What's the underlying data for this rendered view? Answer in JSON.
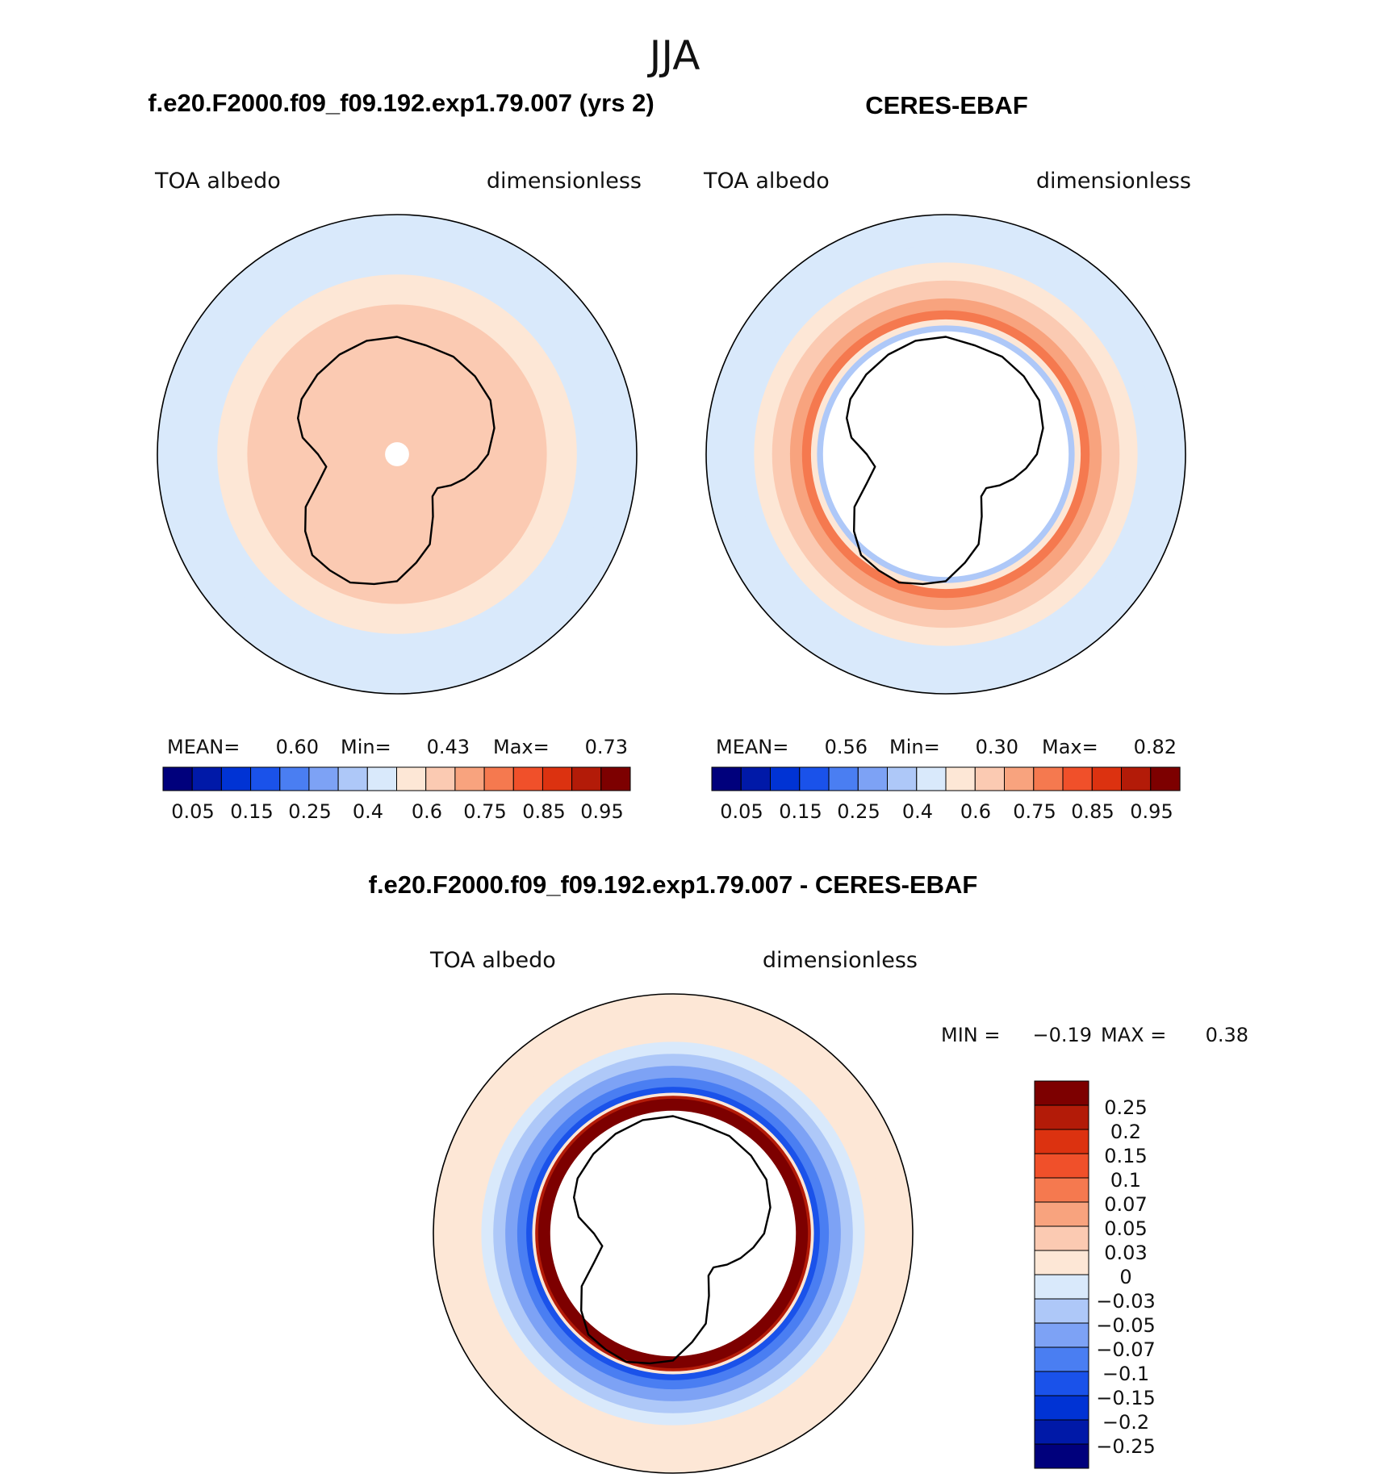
{
  "figure": {
    "title": "JJA",
    "diff_title": "f.e20.F2000.f09_f09.192.exp1.79.007 - CERES-EBAF"
  },
  "colors": {
    "abs_levels": [
      "#00007c",
      "#0019a8",
      "#0033d4",
      "#1a52ea",
      "#4a7ef2",
      "#7da2f5",
      "#aec8f8",
      "#d9e9fb",
      "#fde7d6",
      "#fbcab2",
      "#f8a37e",
      "#f5794f",
      "#f0502a",
      "#dc3210",
      "#b31b08",
      "#7d0000"
    ],
    "diff_levels": [
      "#00007c",
      "#0019a8",
      "#0033d4",
      "#1a52ea",
      "#4a7ef2",
      "#7da2f5",
      "#aec8f8",
      "#d9e9fb",
      "#fde7d6",
      "#fbcab2",
      "#f8a37e",
      "#f5794f",
      "#f0502a",
      "#dc3210",
      "#b31b08",
      "#7d0000"
    ],
    "coast": "#000000"
  },
  "chart_data": [
    {
      "type": "heatmap",
      "title": "f.e20.F2000.f09_f09.192.exp1.79.007 (yrs 2)",
      "left_label": "TOA albedo",
      "right_label": "dimensionless",
      "projection": "south polar stereographic",
      "stats": {
        "mean_label": "MEAN=",
        "mean": "0.60",
        "min_label": "Min=",
        "min": "0.43",
        "max_label": "Max=",
        "max": "0.73"
      },
      "colorbar_labels": [
        "0.05",
        "0.15",
        "0.25",
        "0.4",
        "0.6",
        "0.75",
        "0.85",
        "0.95"
      ],
      "field_rings": [
        {
          "lat": -55,
          "value": 0.45
        },
        {
          "lat": -60,
          "value": 0.55
        },
        {
          "lat": -65,
          "value": 0.6
        },
        {
          "lat": -85,
          "value": 0.68
        },
        {
          "lat": -88,
          "value": null
        }
      ]
    },
    {
      "type": "heatmap",
      "title": "CERES-EBAF",
      "left_label": "TOA albedo",
      "right_label": "dimensionless",
      "projection": "south polar stereographic",
      "stats": {
        "mean_label": "MEAN=",
        "mean": "0.56",
        "min_label": "Min=",
        "min": "0.30",
        "max_label": "Max=",
        "max": "0.82"
      },
      "colorbar_labels": [
        "0.05",
        "0.15",
        "0.25",
        "0.4",
        "0.6",
        "0.75",
        "0.85",
        "0.95"
      ],
      "field_rings": [
        {
          "lat": -55,
          "value": 0.45
        },
        {
          "lat": -58,
          "value": 0.55
        },
        {
          "lat": -61,
          "value": 0.6
        },
        {
          "lat": -64,
          "value": 0.7
        },
        {
          "lat": -66,
          "value": 0.78
        },
        {
          "lat": -67.5,
          "value": 0.5
        },
        {
          "lat": -68.5,
          "value": 0.35
        },
        {
          "lat": -69.5,
          "value": null
        }
      ]
    },
    {
      "type": "heatmap",
      "title": "f.e20.F2000.f09_f09.192.exp1.79.007 - CERES-EBAF",
      "left_label": "TOA albedo",
      "right_label": "dimensionless",
      "projection": "south polar stereographic",
      "stats": {
        "min_label": "MIN =",
        "min": "−0.19",
        "max_label": "MAX =",
        "max": "0.38"
      },
      "colorbar_labels": [
        "0.25",
        "0.2",
        "0.15",
        "0.1",
        "0.07",
        "0.05",
        "0.03",
        "0",
        "−0.03",
        "−0.05",
        "−0.07",
        "−0.1",
        "−0.15",
        "−0.2",
        "−0.25"
      ],
      "field_rings": [
        {
          "lat": -55,
          "value": 0.01
        },
        {
          "lat": -58,
          "value": -0.02
        },
        {
          "lat": -60,
          "value": -0.04
        },
        {
          "lat": -62,
          "value": -0.06
        },
        {
          "lat": -64,
          "value": -0.09
        },
        {
          "lat": -65.5,
          "value": -0.12
        },
        {
          "lat": -66.5,
          "value": 0.0
        },
        {
          "lat": -67,
          "value": 0.2
        },
        {
          "lat": -67.5,
          "value": 0.3
        },
        {
          "lat": -69.5,
          "value": null
        }
      ]
    }
  ]
}
